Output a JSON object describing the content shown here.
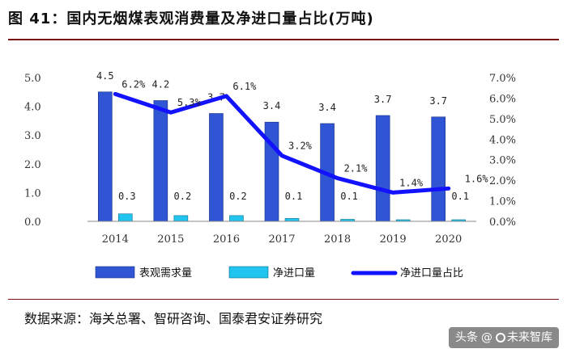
{
  "header": {
    "title": "图 41：国内无烟煤表观消费量及净进口量占比(万吨)"
  },
  "footer": {
    "source": "数据来源：海关总署、智研咨询、国泰君安证券研究"
  },
  "watermark": {
    "part1": "头条",
    "part2": "未来智库"
  },
  "chart_data": {
    "type": "bar",
    "categories": [
      "2014",
      "2015",
      "2016",
      "2017",
      "2018",
      "2019",
      "2020"
    ],
    "series": [
      {
        "name": "表观需求量",
        "kind": "bar",
        "axis": "left",
        "color": "#2f55d4",
        "values": [
          4.5,
          4.2,
          3.7,
          3.4,
          3.4,
          3.7,
          3.7
        ],
        "labels": [
          "4.5",
          "4.2",
          "3.7",
          "3.4",
          "3.4",
          "3.7",
          "3.7"
        ],
        "bar_values": [
          4.5,
          4.2,
          3.75,
          3.45,
          3.4,
          3.68,
          3.63
        ]
      },
      {
        "name": "净进口量",
        "kind": "bar",
        "axis": "left",
        "color": "#21c4ee",
        "values": [
          0.3,
          0.2,
          0.2,
          0.1,
          0.1,
          0.04,
          0.1
        ],
        "labels": [
          "0.3",
          "0.2",
          "0.2",
          "0.1",
          "0.1",
          "",
          "0.1"
        ],
        "bar_values": [
          0.26,
          0.2,
          0.2,
          0.1,
          0.07,
          0.04,
          0.04
        ]
      },
      {
        "name": "净进口量占比",
        "kind": "line",
        "axis": "right",
        "color": "#1212ff",
        "values": [
          6.2,
          5.3,
          6.1,
          3.2,
          2.1,
          1.4,
          1.6
        ],
        "labels": [
          "6.2%",
          "5.3%",
          "6.1%",
          "3.2%",
          "2.1%",
          "1.4%",
          "1.6%"
        ]
      }
    ],
    "y_left": {
      "ylim": [
        0,
        5
      ],
      "ticks": [
        "0.0",
        "1.0",
        "2.0",
        "3.0",
        "4.0",
        "5.0"
      ]
    },
    "y_right": {
      "ylim": [
        0,
        7
      ],
      "ticks": [
        "0.0%",
        "1.0%",
        "2.0%",
        "3.0%",
        "4.0%",
        "5.0%",
        "6.0%",
        "7.0%"
      ]
    },
    "grid": false,
    "legend": "bottom"
  }
}
